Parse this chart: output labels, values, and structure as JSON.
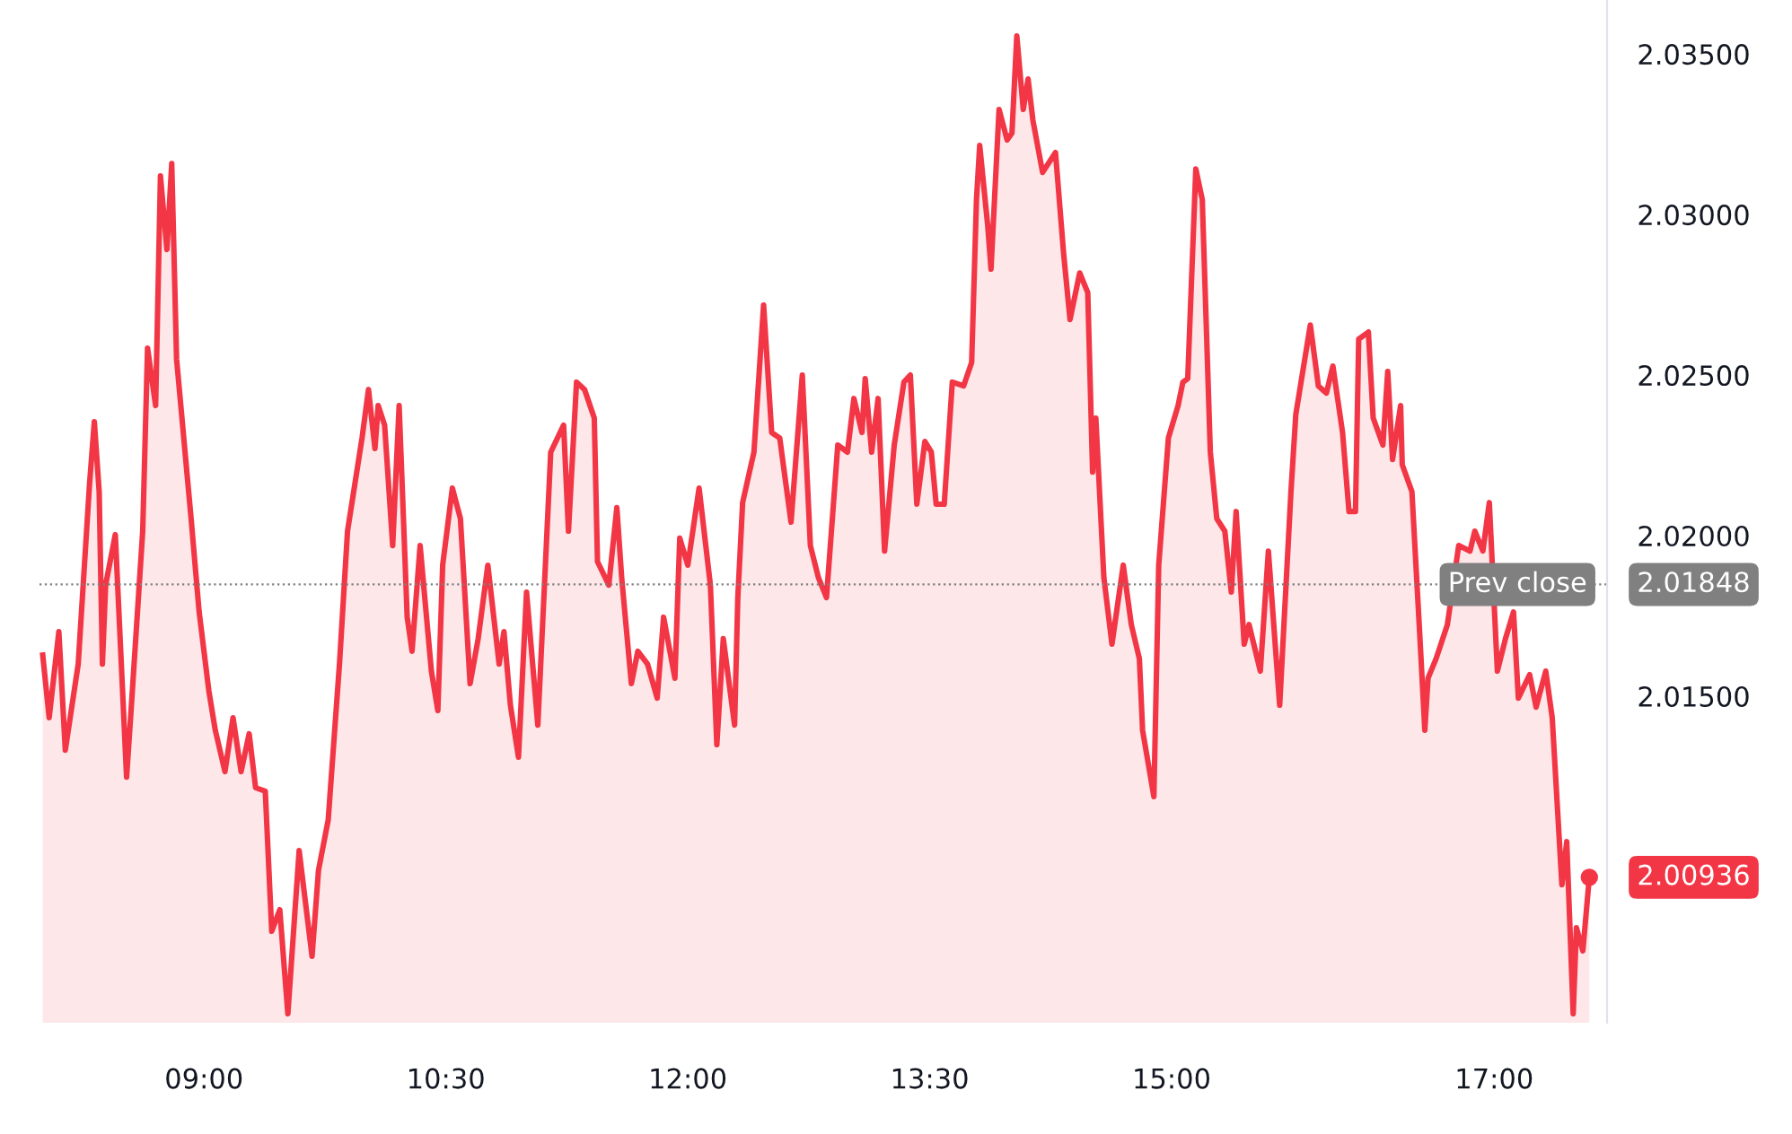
{
  "chart_data": {
    "type": "area",
    "x": [
      8.0,
      8.04,
      8.1,
      8.14,
      8.22,
      8.29,
      8.32,
      8.35,
      8.37,
      8.39,
      8.45,
      8.52,
      8.55,
      8.62,
      8.65,
      8.7,
      8.73,
      8.77,
      8.8,
      8.83,
      8.92,
      8.97,
      9.03,
      9.07,
      9.13,
      9.18,
      9.23,
      9.28,
      9.32,
      9.38,
      9.42,
      9.47,
      9.52,
      9.59,
      9.67,
      9.71,
      9.77,
      9.84,
      9.89,
      9.98,
      10.02,
      10.06,
      10.08,
      10.12,
      10.17,
      10.21,
      10.26,
      10.29,
      10.34,
      10.41,
      10.45,
      10.48,
      10.54,
      10.59,
      10.65,
      10.7,
      10.76,
      10.83,
      10.86,
      10.9,
      10.95,
      11.0,
      11.07,
      11.15,
      11.23,
      11.26,
      11.31,
      11.36,
      11.42,
      11.44,
      11.51,
      11.56,
      11.59,
      11.65,
      11.69,
      11.75,
      11.81,
      11.85,
      11.92,
      11.95,
      12.0,
      12.07,
      12.14,
      12.18,
      12.22,
      12.29,
      12.31,
      12.34,
      12.41,
      12.47,
      12.52,
      12.57,
      12.64,
      12.71,
      12.76,
      12.81,
      12.86,
      12.93,
      12.99,
      13.03,
      13.08,
      13.1,
      13.14,
      13.18,
      13.22,
      13.28,
      13.34,
      13.38,
      13.42,
      13.47,
      13.51,
      13.54,
      13.59,
      13.64,
      13.71,
      13.76,
      13.79,
      13.81,
      13.86,
      13.88,
      13.93,
      13.98,
      14.01,
      14.04,
      14.08,
      14.11,
      14.14,
      14.2,
      14.28,
      14.33,
      14.37,
      14.43,
      14.48,
      14.51,
      14.53,
      14.58,
      14.63,
      14.7,
      14.75,
      14.8,
      14.82,
      14.89,
      14.92,
      14.98,
      15.04,
      15.07,
      15.1,
      15.15,
      15.19,
      15.24,
      15.28,
      15.33,
      15.37,
      15.4,
      15.45,
      15.48,
      15.55,
      15.6,
      15.67,
      15.74,
      15.77,
      15.86,
      15.91,
      15.96,
      16.0,
      16.06,
      16.1,
      16.14,
      16.16,
      16.22,
      16.25,
      16.31,
      16.34,
      16.37,
      16.42,
      16.43,
      16.49,
      16.54,
      16.57,
      16.59,
      16.64,
      16.71,
      16.78,
      16.85,
      16.88,
      16.93,
      16.97,
      17.02,
      17.07,
      17.12,
      17.15,
      17.22,
      17.26,
      17.32,
      17.36,
      17.42,
      17.45,
      17.49,
      17.51,
      17.55,
      17.59
    ],
    "series": [
      {
        "color": "#f23645",
        "values": [
          2.01628,
          2.01433,
          2.01701,
          2.01332,
          2.016,
          2.02159,
          2.02355,
          2.02137,
          2.016,
          2.01846,
          2.02003,
          2.01248,
          2.01472,
          2.02014,
          2.02584,
          2.02405,
          2.0312,
          2.02891,
          2.03159,
          2.0255,
          2.02053,
          2.01762,
          2.01517,
          2.01394,
          2.01265,
          2.01433,
          2.01265,
          2.01383,
          2.01215,
          2.01204,
          2.00768,
          2.00835,
          2.00511,
          2.01019,
          2.0069,
          2.00958,
          2.01114,
          2.016,
          2.02014,
          2.02304,
          2.02455,
          2.02271,
          2.02405,
          2.02344,
          2.01969,
          2.02405,
          2.01746,
          2.0164,
          2.01969,
          2.01578,
          2.01455,
          2.01908,
          2.02148,
          2.02053,
          2.01539,
          2.01679,
          2.01908,
          2.016,
          2.01701,
          2.01472,
          2.0131,
          2.01824,
          2.0141,
          2.0226,
          2.02344,
          2.02014,
          2.02478,
          2.02455,
          2.02366,
          2.01919,
          2.01846,
          2.02087,
          2.01869,
          2.01539,
          2.0164,
          2.016,
          2.01494,
          2.01746,
          2.01556,
          2.01992,
          2.01908,
          2.02148,
          2.01846,
          2.01349,
          2.01679,
          2.0141,
          2.01807,
          2.02103,
          2.0226,
          2.02718,
          2.02321,
          2.02304,
          2.02042,
          2.025,
          2.01969,
          2.01869,
          2.01807,
          2.02282,
          2.0226,
          2.02427,
          2.02321,
          2.02489,
          2.0226,
          2.02427,
          2.01952,
          2.02282,
          2.02478,
          2.025,
          2.02098,
          2.02293,
          2.0226,
          2.02098,
          2.02098,
          2.02478,
          2.02466,
          2.02539,
          2.03047,
          2.03215,
          2.02964,
          2.0283,
          2.03327,
          2.03232,
          2.03254,
          2.03556,
          2.03327,
          2.03422,
          2.03293,
          2.03131,
          2.03193,
          2.0288,
          2.02673,
          2.02818,
          2.02757,
          2.02198,
          2.02366,
          2.01869,
          2.01662,
          2.01908,
          2.01723,
          2.01617,
          2.01394,
          2.01187,
          2.01908,
          2.02304,
          2.02405,
          2.02478,
          2.02489,
          2.03142,
          2.03047,
          2.0226,
          2.02053,
          2.02014,
          2.01824,
          2.02075,
          2.01662,
          2.01723,
          2.01578,
          2.01952,
          2.01472,
          2.02137,
          2.02377,
          2.02656,
          2.02466,
          2.02444,
          2.02528,
          2.02321,
          2.02075,
          2.02075,
          2.02612,
          2.02634,
          2.02366,
          2.02282,
          2.02511,
          2.02237,
          2.02405,
          2.02221,
          2.02137,
          2.01679,
          2.01394,
          2.01556,
          2.01617,
          2.01723,
          2.01969,
          2.01952,
          2.02014,
          2.01952,
          2.02103,
          2.01578,
          2.01679,
          2.01762,
          2.01494,
          2.01567,
          2.01466,
          2.01578,
          2.01433,
          2.00913,
          2.01047,
          2.00511,
          2.00779,
          2.00707,
          2.00936
        ]
      }
    ],
    "xlim": [
      7.98,
      17.7
    ],
    "xticks": [
      {
        "value": 9,
        "label": "09:00"
      },
      {
        "value": 10.5,
        "label": "10:30"
      },
      {
        "value": 12,
        "label": "12:00"
      },
      {
        "value": 13.5,
        "label": "13:30"
      },
      {
        "value": 15,
        "label": "15:00"
      },
      {
        "value": 17,
        "label": "17:00"
      }
    ],
    "ylim": [
      2.00483,
      2.03668
    ],
    "yticks": [
      {
        "value": 2.015,
        "label": "2.01500"
      },
      {
        "value": 2.02,
        "label": "2.02000"
      },
      {
        "value": 2.025,
        "label": "2.02500"
      },
      {
        "value": 2.03,
        "label": "2.03000"
      },
      {
        "value": 2.035,
        "label": "2.03500"
      }
    ],
    "ref_lines": [
      {
        "axis": "y",
        "value": 2.01848,
        "label": "Prev close",
        "color": "#808080",
        "line_style": "dotted"
      }
    ],
    "annotations": [
      {
        "text": "2.00936",
        "x": 17.59,
        "y": 2.00936
      },
      "2.01848"
    ],
    "grid": false,
    "legend": false
  }
}
